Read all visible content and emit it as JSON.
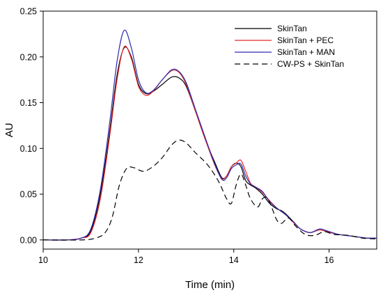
{
  "chart_data": {
    "type": "line",
    "xlabel": "Time (min)",
    "ylabel": "AU",
    "xlim": [
      10,
      17
    ],
    "ylim": [
      -0.01,
      0.25
    ],
    "x_ticks": [
      10,
      12,
      14,
      16
    ],
    "x_tick_labels": [
      "10",
      "12",
      "14",
      "16"
    ],
    "y_ticks": [
      0.0,
      0.05,
      0.1,
      0.15,
      0.2,
      0.25
    ],
    "y_tick_labels": [
      "0.00",
      "0.05",
      "0.10",
      "0.15",
      "0.20",
      "0.25"
    ],
    "grid": false,
    "legend_position": "top-right",
    "series": [
      {
        "name": "SkinTan",
        "color": "#000000",
        "dash": "solid",
        "points": [
          [
            10.0,
            0.0
          ],
          [
            10.5,
            0.0
          ],
          [
            10.8,
            0.002
          ],
          [
            11.0,
            0.01
          ],
          [
            11.2,
            0.05
          ],
          [
            11.4,
            0.12
          ],
          [
            11.55,
            0.18
          ],
          [
            11.7,
            0.21
          ],
          [
            11.85,
            0.2
          ],
          [
            12.0,
            0.17
          ],
          [
            12.15,
            0.16
          ],
          [
            12.3,
            0.162
          ],
          [
            12.5,
            0.17
          ],
          [
            12.7,
            0.178
          ],
          [
            12.85,
            0.177
          ],
          [
            13.0,
            0.168
          ],
          [
            13.2,
            0.14
          ],
          [
            13.4,
            0.11
          ],
          [
            13.6,
            0.085
          ],
          [
            13.75,
            0.068
          ],
          [
            13.85,
            0.07
          ],
          [
            13.95,
            0.08
          ],
          [
            14.05,
            0.084
          ],
          [
            14.15,
            0.08
          ],
          [
            14.25,
            0.065
          ],
          [
            14.35,
            0.06
          ],
          [
            14.45,
            0.057
          ],
          [
            14.6,
            0.05
          ],
          [
            14.75,
            0.04
          ],
          [
            14.9,
            0.034
          ],
          [
            15.0,
            0.032
          ],
          [
            15.1,
            0.028
          ],
          [
            15.25,
            0.02
          ],
          [
            15.4,
            0.012
          ],
          [
            15.6,
            0.008
          ],
          [
            15.8,
            0.011
          ],
          [
            15.95,
            0.009
          ],
          [
            16.2,
            0.006
          ],
          [
            16.5,
            0.004
          ],
          [
            16.8,
            0.002
          ],
          [
            17.0,
            0.002
          ]
        ]
      },
      {
        "name": "SkinTan + PEC",
        "color": "#e8262a",
        "dash": "solid",
        "points": [
          [
            10.0,
            0.0
          ],
          [
            10.5,
            0.0
          ],
          [
            10.8,
            0.002
          ],
          [
            11.0,
            0.008
          ],
          [
            11.2,
            0.045
          ],
          [
            11.4,
            0.115
          ],
          [
            11.55,
            0.175
          ],
          [
            11.7,
            0.211
          ],
          [
            11.85,
            0.198
          ],
          [
            12.0,
            0.168
          ],
          [
            12.15,
            0.158
          ],
          [
            12.3,
            0.162
          ],
          [
            12.5,
            0.175
          ],
          [
            12.7,
            0.185
          ],
          [
            12.85,
            0.183
          ],
          [
            13.0,
            0.17
          ],
          [
            13.2,
            0.14
          ],
          [
            13.4,
            0.11
          ],
          [
            13.6,
            0.082
          ],
          [
            13.75,
            0.067
          ],
          [
            13.85,
            0.07
          ],
          [
            13.95,
            0.08
          ],
          [
            14.05,
            0.084
          ],
          [
            14.15,
            0.087
          ],
          [
            14.25,
            0.075
          ],
          [
            14.35,
            0.062
          ],
          [
            14.45,
            0.058
          ],
          [
            14.6,
            0.052
          ],
          [
            14.75,
            0.043
          ],
          [
            14.9,
            0.035
          ],
          [
            15.0,
            0.031
          ],
          [
            15.1,
            0.027
          ],
          [
            15.25,
            0.019
          ],
          [
            15.4,
            0.012
          ],
          [
            15.6,
            0.008
          ],
          [
            15.8,
            0.011
          ],
          [
            15.95,
            0.009
          ],
          [
            16.2,
            0.006
          ],
          [
            16.5,
            0.004
          ],
          [
            16.8,
            0.002
          ],
          [
            17.0,
            0.002
          ]
        ]
      },
      {
        "name": "SkinTan + MAN",
        "color": "#2b2bb0",
        "dash": "solid",
        "points": [
          [
            10.0,
            0.0
          ],
          [
            10.5,
            0.0
          ],
          [
            10.8,
            0.002
          ],
          [
            11.0,
            0.012
          ],
          [
            11.2,
            0.055
          ],
          [
            11.4,
            0.13
          ],
          [
            11.55,
            0.195
          ],
          [
            11.7,
            0.229
          ],
          [
            11.85,
            0.21
          ],
          [
            12.0,
            0.175
          ],
          [
            12.15,
            0.161
          ],
          [
            12.3,
            0.163
          ],
          [
            12.5,
            0.175
          ],
          [
            12.7,
            0.186
          ],
          [
            12.85,
            0.184
          ],
          [
            13.0,
            0.172
          ],
          [
            13.2,
            0.142
          ],
          [
            13.4,
            0.112
          ],
          [
            13.6,
            0.083
          ],
          [
            13.75,
            0.066
          ],
          [
            13.85,
            0.068
          ],
          [
            13.95,
            0.078
          ],
          [
            14.05,
            0.082
          ],
          [
            14.15,
            0.083
          ],
          [
            14.25,
            0.07
          ],
          [
            14.35,
            0.061
          ],
          [
            14.45,
            0.058
          ],
          [
            14.6,
            0.053
          ],
          [
            14.75,
            0.042
          ],
          [
            14.9,
            0.035
          ],
          [
            15.0,
            0.031
          ],
          [
            15.1,
            0.027
          ],
          [
            15.25,
            0.02
          ],
          [
            15.4,
            0.012
          ],
          [
            15.6,
            0.008
          ],
          [
            15.8,
            0.012
          ],
          [
            15.95,
            0.01
          ],
          [
            16.2,
            0.006
          ],
          [
            16.5,
            0.004
          ],
          [
            16.8,
            0.002
          ],
          [
            17.0,
            0.002
          ]
        ]
      },
      {
        "name": "CW-PS + SkinTan",
        "color": "#000000",
        "dash": "dashed",
        "points": [
          [
            10.0,
            0.0
          ],
          [
            10.8,
            0.0
          ],
          [
            11.1,
            0.002
          ],
          [
            11.3,
            0.008
          ],
          [
            11.45,
            0.025
          ],
          [
            11.6,
            0.06
          ],
          [
            11.75,
            0.078
          ],
          [
            11.9,
            0.079
          ],
          [
            12.1,
            0.075
          ],
          [
            12.3,
            0.08
          ],
          [
            12.5,
            0.09
          ],
          [
            12.7,
            0.104
          ],
          [
            12.85,
            0.109
          ],
          [
            13.0,
            0.106
          ],
          [
            13.2,
            0.095
          ],
          [
            13.4,
            0.085
          ],
          [
            13.55,
            0.075
          ],
          [
            13.7,
            0.062
          ],
          [
            13.85,
            0.045
          ],
          [
            13.95,
            0.04
          ],
          [
            14.05,
            0.06
          ],
          [
            14.15,
            0.072
          ],
          [
            14.25,
            0.06
          ],
          [
            14.35,
            0.045
          ],
          [
            14.5,
            0.036
          ],
          [
            14.6,
            0.045
          ],
          [
            14.7,
            0.046
          ],
          [
            14.8,
            0.035
          ],
          [
            14.9,
            0.022
          ],
          [
            15.0,
            0.018
          ],
          [
            15.15,
            0.024
          ],
          [
            15.3,
            0.015
          ],
          [
            15.5,
            0.006
          ],
          [
            15.7,
            0.005
          ],
          [
            15.9,
            0.009
          ],
          [
            16.1,
            0.006
          ],
          [
            16.4,
            0.005
          ],
          [
            16.7,
            0.002
          ],
          [
            17.0,
            0.001
          ]
        ]
      }
    ]
  }
}
